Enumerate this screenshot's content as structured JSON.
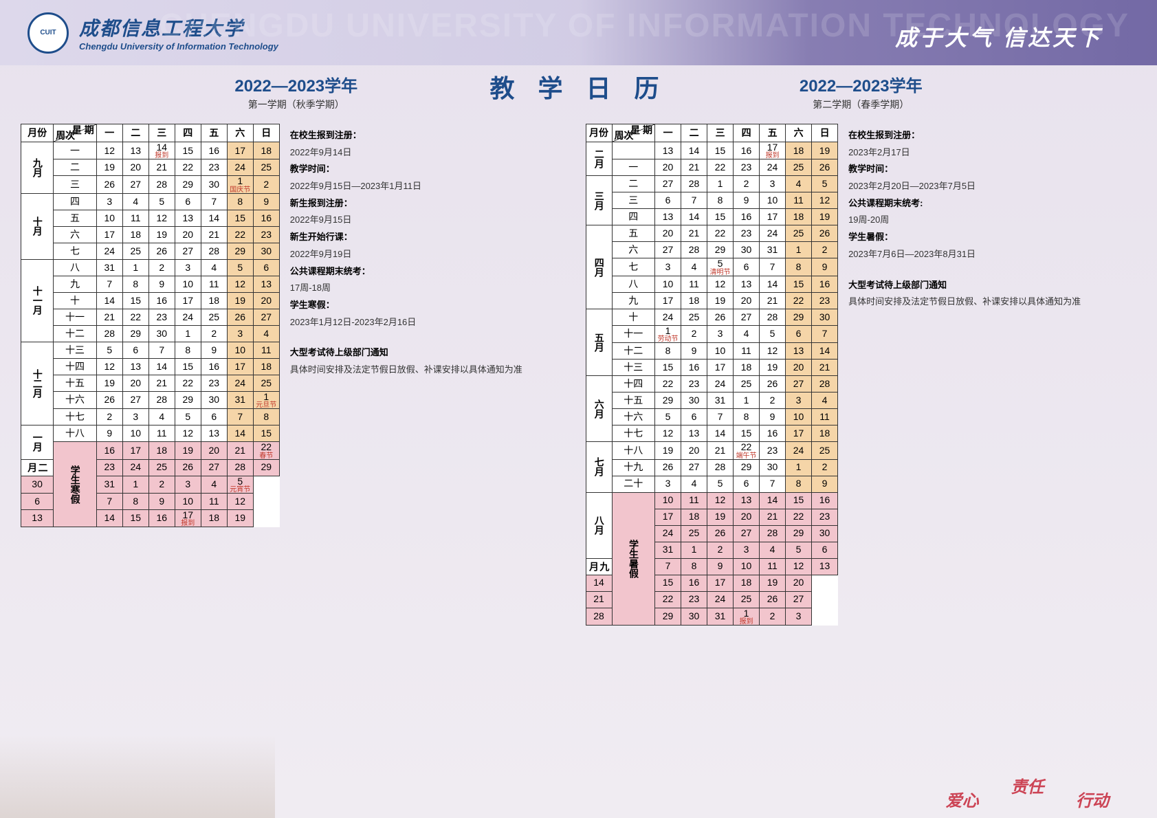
{
  "university": {
    "cn": "成都信息工程大学",
    "en": "Chengdu University of Information Technology",
    "logo": "CUIT"
  },
  "slogan": {
    "cn": "成于大气  信达天下",
    "bg": "CHENGDU UNIVERSITY OF INFORMATION TECHNOLOGY"
  },
  "main_title": "教 学 日 历",
  "colors": {
    "header_blue": "#1e4d8b",
    "weekend": "#f5d5a8",
    "vacation": "#f2c5cd",
    "holiday_red": "#c0392b"
  },
  "sem1": {
    "title": "2022—2023学年",
    "sub": "第一学期（秋季学期）",
    "head": [
      "月份",
      "周次",
      "一",
      "二",
      "三",
      "四",
      "五",
      "六",
      "日"
    ],
    "diag": {
      "top": "星 期",
      "bot": "周次"
    },
    "months": [
      {
        "label": "九月",
        "span": 3
      },
      {
        "label": "十月",
        "span": 4
      },
      {
        "label": "十一月",
        "span": 5
      },
      {
        "label": "十二月",
        "span": 5
      },
      {
        "label": "一月",
        "span": 2
      },
      {
        "label": "二月",
        "span": 1
      }
    ],
    "vacation_span": 5,
    "vacation_label": "学生寒假",
    "rows": [
      {
        "w": "一",
        "d": [
          "12",
          "13",
          {
            "v": "14",
            "s": "报到"
          },
          "15",
          "16",
          "17",
          "18"
        ]
      },
      {
        "w": "二",
        "d": [
          "19",
          "20",
          "21",
          "22",
          "23",
          "24",
          "25"
        ]
      },
      {
        "w": "三",
        "d": [
          "26",
          "27",
          "28",
          "29",
          "30",
          {
            "v": "1",
            "s": "国庆节"
          },
          "2"
        ]
      },
      {
        "w": "四",
        "d": [
          "3",
          "4",
          "5",
          "6",
          "7",
          "8",
          "9"
        ]
      },
      {
        "w": "五",
        "d": [
          "10",
          "11",
          "12",
          "13",
          "14",
          "15",
          "16"
        ]
      },
      {
        "w": "六",
        "d": [
          "17",
          "18",
          "19",
          "20",
          "21",
          "22",
          "23"
        ]
      },
      {
        "w": "七",
        "d": [
          "24",
          "25",
          "26",
          "27",
          "28",
          "29",
          "30"
        ]
      },
      {
        "w": "八",
        "d": [
          "31",
          "1",
          "2",
          "3",
          "4",
          "5",
          "6"
        ]
      },
      {
        "w": "九",
        "d": [
          "7",
          "8",
          "9",
          "10",
          "11",
          "12",
          "13"
        ]
      },
      {
        "w": "十",
        "d": [
          "14",
          "15",
          "16",
          "17",
          "18",
          "19",
          "20"
        ]
      },
      {
        "w": "十一",
        "d": [
          "21",
          "22",
          "23",
          "24",
          "25",
          "26",
          "27"
        ]
      },
      {
        "w": "十二",
        "d": [
          "28",
          "29",
          "30",
          "1",
          "2",
          "3",
          "4"
        ]
      },
      {
        "w": "十三",
        "d": [
          "5",
          "6",
          "7",
          "8",
          "9",
          "10",
          "11"
        ]
      },
      {
        "w": "十四",
        "d": [
          "12",
          "13",
          "14",
          "15",
          "16",
          "17",
          "18"
        ]
      },
      {
        "w": "十五",
        "d": [
          "19",
          "20",
          "21",
          "22",
          "23",
          "24",
          "25"
        ]
      },
      {
        "w": "十六",
        "d": [
          "26",
          "27",
          "28",
          "29",
          "30",
          "31",
          {
            "v": "1",
            "s": "元旦节"
          }
        ]
      },
      {
        "w": "十七",
        "d": [
          "2",
          "3",
          "4",
          "5",
          "6",
          "7",
          "8"
        ]
      },
      {
        "w": "十八",
        "d": [
          "9",
          "10",
          "11",
          "12",
          "13",
          "14",
          "15"
        ]
      },
      {
        "w": "",
        "d": [
          "16",
          "17",
          "18",
          "19",
          "20",
          "21",
          {
            "v": "22",
            "s": "春节"
          }
        ],
        "vac": true
      },
      {
        "w": "",
        "d": [
          "23",
          "24",
          "25",
          "26",
          "27",
          "28",
          "29"
        ],
        "vac": true
      },
      {
        "w": "",
        "d": [
          "30",
          "31",
          "1",
          "2",
          "3",
          "4",
          {
            "v": "5",
            "s": "元宵节"
          }
        ],
        "vac": true
      },
      {
        "w": "",
        "d": [
          "6",
          "7",
          "8",
          "9",
          "10",
          "11",
          "12"
        ],
        "vac": true
      },
      {
        "w": "",
        "d": [
          "13",
          "14",
          "15",
          "16",
          {
            "v": "17",
            "s": "报到"
          },
          "18",
          "19"
        ],
        "vac": true
      }
    ],
    "notes": [
      {
        "t": "在校生报到注册：",
        "v": "2022年9月14日"
      },
      {
        "t": "教学时间：",
        "v": "2022年9月15日—2023年1月11日"
      },
      {
        "t": "新生报到注册：",
        "v": "2022年9月15日"
      },
      {
        "t": "新生开始行课：",
        "v": "2022年9月19日"
      },
      {
        "t": "公共课程期末统考：",
        "v": "17周-18周"
      },
      {
        "t": "学生寒假：",
        "v": "2023年1月12日-2023年2月16日"
      }
    ],
    "footer_t": "大型考试待上级部门通知",
    "footer_v": "具体时间安排及法定节假日放假、补课安排以具体通知为准"
  },
  "sem2": {
    "title": "2022—2023学年",
    "sub": "第二学期（春季学期）",
    "head": [
      "月份",
      "周次",
      "一",
      "二",
      "三",
      "四",
      "五",
      "六",
      "日"
    ],
    "diag": {
      "top": "星 期",
      "bot": "周次"
    },
    "months": [
      {
        "label": "二月",
        "span": 2
      },
      {
        "label": "三月",
        "span": 3
      },
      {
        "label": "四月",
        "span": 5
      },
      {
        "label": "五月",
        "span": 4
      },
      {
        "label": "六月",
        "span": 4
      },
      {
        "label": "七月",
        "span": 3
      },
      {
        "label": "八月",
        "span": 4
      },
      {
        "label": "九月",
        "span": 1
      }
    ],
    "vacation_start_row": 21,
    "vacation_span": 8,
    "vacation_label": "学生暑假",
    "rows": [
      {
        "w": "",
        "d": [
          "13",
          "14",
          "15",
          "16",
          {
            "v": "17",
            "s": "报到"
          },
          "18",
          "19"
        ]
      },
      {
        "w": "一",
        "d": [
          "20",
          "21",
          "22",
          "23",
          "24",
          "25",
          "26"
        ]
      },
      {
        "w": "二",
        "d": [
          "27",
          "28",
          "1",
          "2",
          "3",
          "4",
          "5"
        ]
      },
      {
        "w": "三",
        "d": [
          "6",
          "7",
          "8",
          "9",
          "10",
          "11",
          "12"
        ]
      },
      {
        "w": "四",
        "d": [
          "13",
          "14",
          "15",
          "16",
          "17",
          "18",
          "19"
        ]
      },
      {
        "w": "五",
        "d": [
          "20",
          "21",
          "22",
          "23",
          "24",
          "25",
          "26"
        ]
      },
      {
        "w": "六",
        "d": [
          "27",
          "28",
          "29",
          "30",
          "31",
          "1",
          "2"
        ]
      },
      {
        "w": "七",
        "d": [
          "3",
          "4",
          {
            "v": "5",
            "s": "清明节"
          },
          "6",
          "7",
          "8",
          "9"
        ]
      },
      {
        "w": "八",
        "d": [
          "10",
          "11",
          "12",
          "13",
          "14",
          "15",
          "16"
        ]
      },
      {
        "w": "九",
        "d": [
          "17",
          "18",
          "19",
          "20",
          "21",
          "22",
          "23"
        ]
      },
      {
        "w": "十",
        "d": [
          "24",
          "25",
          "26",
          "27",
          "28",
          "29",
          "30"
        ]
      },
      {
        "w": "十一",
        "d": [
          {
            "v": "1",
            "s": "劳动节"
          },
          "2",
          "3",
          "4",
          "5",
          "6",
          "7"
        ]
      },
      {
        "w": "十二",
        "d": [
          "8",
          "9",
          "10",
          "11",
          "12",
          "13",
          "14"
        ]
      },
      {
        "w": "十三",
        "d": [
          "15",
          "16",
          "17",
          "18",
          "19",
          "20",
          "21"
        ]
      },
      {
        "w": "十四",
        "d": [
          "22",
          "23",
          "24",
          "25",
          "26",
          "27",
          "28"
        ]
      },
      {
        "w": "十五",
        "d": [
          "29",
          "30",
          "31",
          "1",
          "2",
          "3",
          "4"
        ]
      },
      {
        "w": "十六",
        "d": [
          "5",
          "6",
          "7",
          "8",
          "9",
          "10",
          "11"
        ]
      },
      {
        "w": "十七",
        "d": [
          "12",
          "13",
          "14",
          "15",
          "16",
          "17",
          "18"
        ]
      },
      {
        "w": "十八",
        "d": [
          "19",
          "20",
          "21",
          {
            "v": "22",
            "s": "端午节"
          },
          "23",
          "24",
          "25"
        ]
      },
      {
        "w": "十九",
        "d": [
          "26",
          "27",
          "28",
          "29",
          "30",
          "1",
          "2"
        ]
      },
      {
        "w": "二十",
        "d": [
          "3",
          "4",
          "5",
          "6",
          "7",
          "8",
          "9"
        ]
      },
      {
        "w": "",
        "d": [
          "10",
          "11",
          "12",
          "13",
          "14",
          "15",
          "16"
        ],
        "vac": true
      },
      {
        "w": "",
        "d": [
          "17",
          "18",
          "19",
          "20",
          "21",
          "22",
          "23"
        ],
        "vac": true
      },
      {
        "w": "",
        "d": [
          "24",
          "25",
          "26",
          "27",
          "28",
          "29",
          "30"
        ],
        "vac": true
      },
      {
        "w": "",
        "d": [
          "31",
          "1",
          "2",
          "3",
          "4",
          "5",
          "6"
        ],
        "vac": true
      },
      {
        "w": "",
        "d": [
          "7",
          "8",
          "9",
          "10",
          "11",
          "12",
          "13"
        ],
        "vac": true
      },
      {
        "w": "",
        "d": [
          "14",
          "15",
          "16",
          "17",
          "18",
          "19",
          "20"
        ],
        "vac": true
      },
      {
        "w": "",
        "d": [
          "21",
          "22",
          "23",
          "24",
          "25",
          "26",
          "27"
        ],
        "vac": true
      },
      {
        "w": "",
        "d": [
          "28",
          "29",
          "30",
          "31",
          {
            "v": "1",
            "s": "报到"
          },
          "2",
          "3"
        ],
        "vac": true
      }
    ],
    "notes": [
      {
        "t": "在校生报到注册：",
        "v": "2023年2月17日"
      },
      {
        "t": "教学时间：",
        "v": "2023年2月20日—2023年7月5日"
      },
      {
        "t": "公共课程期末统考:",
        "v": "19周-20周"
      },
      {
        "t": "学生暑假：",
        "v": "2023年7月6日—2023年8月31日"
      }
    ],
    "footer_t": "大型考试待上级部门通知",
    "footer_v": "具体时间安排及法定节假日放假、补课安排以具体通知为准"
  },
  "deco": [
    "爱心",
    "责任",
    "行动"
  ]
}
